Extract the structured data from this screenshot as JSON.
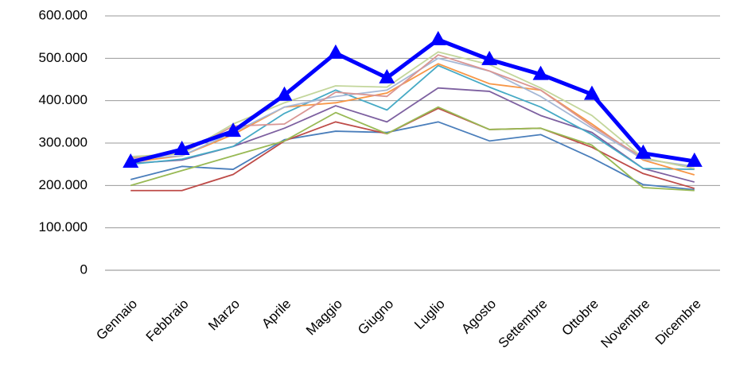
{
  "chart_data": {
    "type": "line",
    "categories": [
      "Gennaio",
      "Febbraio",
      "Marzo",
      "Aprile",
      "Maggio",
      "Giugno",
      "Luglio",
      "Agosto",
      "Settembre",
      "Ottobre",
      "Novembre",
      "Dicembre"
    ],
    "series": [
      {
        "color": "#4a7ebb",
        "values": [
          214000,
          245000,
          238000,
          308000,
          328000,
          325000,
          350000,
          305000,
          320000,
          265000,
          202000,
          190000
        ]
      },
      {
        "color": "#be4b48",
        "values": [
          188000,
          188000,
          226000,
          305000,
          350000,
          322000,
          382000,
          332000,
          335000,
          290000,
          228000,
          193000
        ]
      },
      {
        "color": "#98b954",
        "values": [
          200000,
          235000,
          270000,
          305000,
          372000,
          322000,
          385000,
          332000,
          335000,
          295000,
          195000,
          188000
        ]
      },
      {
        "color": "#7d60a0",
        "values": [
          252000,
          260000,
          292000,
          335000,
          388000,
          350000,
          430000,
          422000,
          365000,
          325000,
          240000,
          208000
        ]
      },
      {
        "color": "#46aac5",
        "values": [
          250000,
          262000,
          292000,
          370000,
          425000,
          378000,
          483000,
          432000,
          385000,
          320000,
          240000,
          238000
        ]
      },
      {
        "color": "#f79646",
        "values": [
          255000,
          270000,
          320000,
          385000,
          395000,
          418000,
          487000,
          440000,
          425000,
          345000,
          260000,
          225000
        ]
      },
      {
        "color": "#a5b8d6",
        "values": [
          262000,
          270000,
          325000,
          385000,
          410000,
          425000,
          500000,
          470000,
          410000,
          335000,
          262000,
          245000
        ]
      },
      {
        "color": "#d99694",
        "values": [
          265000,
          275000,
          340000,
          345000,
          420000,
          410000,
          508000,
          470000,
          425000,
          340000,
          265000,
          240000
        ]
      },
      {
        "color": "#c3d69b",
        "values": [
          268000,
          275000,
          345000,
          395000,
          435000,
          432000,
          515000,
          485000,
          430000,
          365000,
          265000,
          240000
        ]
      },
      {
        "color": "#0000ff",
        "marker": "triangle",
        "values": [
          255000,
          285000,
          328000,
          413000,
          512000,
          454000,
          544000,
          497000,
          462000,
          415000,
          276000,
          257000
        ]
      }
    ],
    "ylim": [
      0,
      600000
    ],
    "yticks": [
      0,
      {
        "value": 100000,
        "label": "100.000"
      },
      {
        "value": 200000,
        "label": "200.000"
      },
      {
        "value": 300000,
        "label": "300.000"
      },
      {
        "value": 400000,
        "label": "400.000"
      },
      {
        "value": 500000,
        "label": "500.000"
      },
      {
        "value": 600000,
        "label": "600.000"
      }
    ],
    "grid": true
  }
}
